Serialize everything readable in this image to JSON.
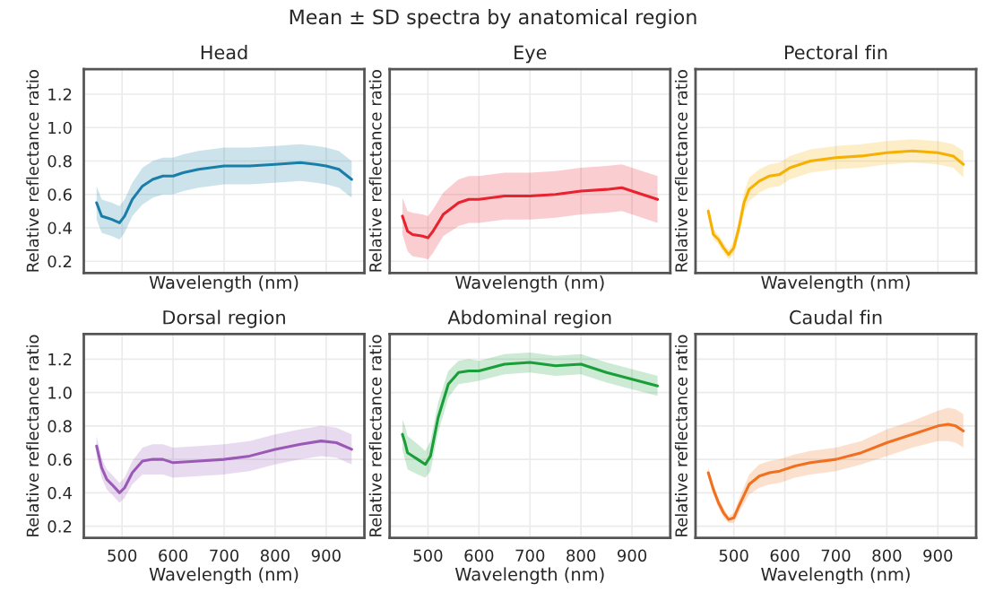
{
  "chart_data": [
    {
      "type": "line",
      "title": "Head",
      "xlabel": "Wavelength (nm)",
      "ylabel": "Relative reflectance ratio",
      "annotations": [
        "Mean ± SD spectra by anatomical region"
      ],
      "xlim": [
        425,
        975
      ],
      "ylim": [
        0.13,
        1.35
      ],
      "xticks": [
        500,
        600,
        700,
        800,
        900
      ],
      "yticks": [
        0.2,
        0.4,
        0.6,
        0.8,
        {
          "value": 1,
          "label": "1.0"
        },
        1.2
      ],
      "grid": true,
      "tick_labels": "y",
      "series": [
        {
          "color": "#1a7fa8",
          "x": [
            450,
            460,
            470,
            480,
            495,
            505,
            520,
            540,
            560,
            580,
            600,
            620,
            650,
            700,
            750,
            800,
            850,
            880,
            900,
            925,
            950
          ],
          "values": [
            0.55,
            0.47,
            0.46,
            0.45,
            0.43,
            0.47,
            0.57,
            0.65,
            0.69,
            0.71,
            0.71,
            0.73,
            0.75,
            0.77,
            0.77,
            0.78,
            0.79,
            0.78,
            0.77,
            0.75,
            0.69
          ],
          "lower": [
            0.45,
            0.37,
            0.36,
            0.35,
            0.33,
            0.37,
            0.47,
            0.54,
            0.58,
            0.6,
            0.6,
            0.62,
            0.64,
            0.66,
            0.66,
            0.67,
            0.68,
            0.67,
            0.66,
            0.64,
            0.58
          ],
          "upper": [
            0.65,
            0.57,
            0.56,
            0.55,
            0.53,
            0.57,
            0.67,
            0.76,
            0.8,
            0.82,
            0.82,
            0.84,
            0.86,
            0.88,
            0.88,
            0.89,
            0.9,
            0.89,
            0.88,
            0.86,
            0.8
          ]
        }
      ]
    },
    {
      "type": "line",
      "title": "Eye",
      "xlabel": "Wavelength (nm)",
      "ylabel": "Relative reflectance ratio",
      "xlim": [
        425,
        975
      ],
      "ylim": [
        0.13,
        1.35
      ],
      "xticks": [
        500,
        600,
        700,
        800,
        900
      ],
      "yticks": [
        0.2,
        0.4,
        0.6,
        0.8,
        1,
        1.2
      ],
      "grid": true,
      "tick_labels": false,
      "series": [
        {
          "color": "#e8222e",
          "x": [
            450,
            460,
            470,
            490,
            500,
            510,
            530,
            560,
            580,
            600,
            650,
            700,
            750,
            800,
            850,
            880,
            900,
            950
          ],
          "values": [
            0.47,
            0.38,
            0.36,
            0.35,
            0.34,
            0.38,
            0.48,
            0.55,
            0.57,
            0.57,
            0.59,
            0.59,
            0.6,
            0.62,
            0.63,
            0.64,
            0.62,
            0.57
          ],
          "lower": [
            0.36,
            0.26,
            0.23,
            0.22,
            0.21,
            0.25,
            0.35,
            0.41,
            0.43,
            0.43,
            0.45,
            0.45,
            0.46,
            0.48,
            0.49,
            0.5,
            0.48,
            0.43
          ],
          "upper": [
            0.58,
            0.5,
            0.49,
            0.48,
            0.47,
            0.51,
            0.61,
            0.69,
            0.71,
            0.71,
            0.73,
            0.73,
            0.74,
            0.76,
            0.77,
            0.78,
            0.76,
            0.71
          ]
        }
      ]
    },
    {
      "type": "line",
      "title": "Pectoral fin",
      "xlabel": "Wavelength (nm)",
      "ylabel": "Relative reflectance ratio",
      "xlim": [
        425,
        975
      ],
      "ylim": [
        0.13,
        1.35
      ],
      "xticks": [
        500,
        600,
        700,
        800,
        900
      ],
      "yticks": [
        0.2,
        0.4,
        0.6,
        0.8,
        1,
        1.2
      ],
      "grid": true,
      "tick_labels": false,
      "series": [
        {
          "color": "#f5b000",
          "x": [
            450,
            460,
            470,
            480,
            490,
            500,
            510,
            520,
            530,
            550,
            570,
            590,
            610,
            650,
            700,
            750,
            800,
            850,
            900,
            930,
            950
          ],
          "values": [
            0.5,
            0.36,
            0.33,
            0.28,
            0.24,
            0.28,
            0.4,
            0.55,
            0.63,
            0.68,
            0.71,
            0.72,
            0.76,
            0.8,
            0.82,
            0.83,
            0.85,
            0.86,
            0.85,
            0.83,
            0.78
          ],
          "lower": [
            0.47,
            0.33,
            0.3,
            0.25,
            0.21,
            0.24,
            0.35,
            0.49,
            0.56,
            0.61,
            0.64,
            0.65,
            0.69,
            0.73,
            0.75,
            0.76,
            0.78,
            0.79,
            0.78,
            0.76,
            0.7
          ],
          "upper": [
            0.53,
            0.39,
            0.36,
            0.31,
            0.27,
            0.32,
            0.45,
            0.61,
            0.7,
            0.75,
            0.78,
            0.79,
            0.83,
            0.87,
            0.89,
            0.9,
            0.92,
            0.93,
            0.92,
            0.9,
            0.86
          ]
        }
      ]
    },
    {
      "type": "line",
      "title": "Dorsal region",
      "xlabel": "Wavelength (nm)",
      "ylabel": "Relative reflectance ratio",
      "xlim": [
        425,
        975
      ],
      "ylim": [
        0.13,
        1.35
      ],
      "xticks": [
        500,
        600,
        700,
        800,
        900
      ],
      "yticks": [
        0.2,
        0.4,
        0.6,
        0.8,
        {
          "value": 1,
          "label": "1.0"
        },
        1.2
      ],
      "grid": true,
      "series": [
        {
          "color": "#9b59b6",
          "x": [
            450,
            460,
            470,
            480,
            495,
            505,
            520,
            540,
            560,
            580,
            600,
            650,
            700,
            750,
            800,
            850,
            890,
            920,
            950
          ],
          "values": [
            0.68,
            0.55,
            0.48,
            0.45,
            0.4,
            0.43,
            0.52,
            0.59,
            0.6,
            0.6,
            0.58,
            0.59,
            0.6,
            0.62,
            0.66,
            0.69,
            0.71,
            0.7,
            0.66
          ],
          "lower": [
            0.62,
            0.49,
            0.42,
            0.39,
            0.34,
            0.37,
            0.45,
            0.51,
            0.51,
            0.51,
            0.49,
            0.5,
            0.51,
            0.53,
            0.57,
            0.6,
            0.62,
            0.61,
            0.57
          ],
          "upper": [
            0.74,
            0.61,
            0.54,
            0.51,
            0.46,
            0.49,
            0.59,
            0.67,
            0.69,
            0.69,
            0.67,
            0.68,
            0.69,
            0.71,
            0.75,
            0.78,
            0.8,
            0.79,
            0.75
          ]
        }
      ]
    },
    {
      "type": "line",
      "title": "Abdominal region",
      "xlabel": "Wavelength (nm)",
      "ylabel": "Relative reflectance ratio",
      "xlim": [
        425,
        975
      ],
      "ylim": [
        0.13,
        1.35
      ],
      "xticks": [
        500,
        600,
        700,
        800,
        900
      ],
      "yticks": [
        0.2,
        0.4,
        0.6,
        0.8,
        1,
        1.2
      ],
      "grid": true,
      "tick_labels": "x",
      "series": [
        {
          "color": "#1a9e3a",
          "x": [
            450,
            455,
            460,
            480,
            495,
            505,
            520,
            540,
            560,
            580,
            600,
            650,
            700,
            750,
            800,
            850,
            900,
            950
          ],
          "values": [
            0.75,
            0.7,
            0.64,
            0.6,
            0.57,
            0.62,
            0.85,
            1.05,
            1.12,
            1.13,
            1.13,
            1.17,
            1.18,
            1.16,
            1.17,
            1.12,
            1.08,
            1.04
          ],
          "lower": [
            0.66,
            0.6,
            0.54,
            0.51,
            0.49,
            0.53,
            0.76,
            0.97,
            1.05,
            1.06,
            1.07,
            1.11,
            1.12,
            1.1,
            1.11,
            1.06,
            1.02,
            0.98
          ],
          "upper": [
            0.84,
            0.8,
            0.74,
            0.69,
            0.65,
            0.71,
            0.94,
            1.13,
            1.19,
            1.2,
            1.19,
            1.23,
            1.24,
            1.22,
            1.23,
            1.18,
            1.14,
            1.1
          ]
        }
      ]
    },
    {
      "type": "line",
      "title": "Caudal fin",
      "xlabel": "Wavelength (nm)",
      "ylabel": "Relative reflectance ratio",
      "xlim": [
        425,
        975
      ],
      "ylim": [
        0.13,
        1.35
      ],
      "xticks": [
        500,
        600,
        700,
        800,
        900
      ],
      "yticks": [
        0.2,
        0.4,
        0.6,
        0.8,
        1,
        1.2
      ],
      "grid": true,
      "tick_labels": "x",
      "series": [
        {
          "color": "#f07020",
          "x": [
            450,
            460,
            470,
            480,
            490,
            500,
            510,
            530,
            550,
            570,
            590,
            620,
            650,
            700,
            750,
            800,
            850,
            900,
            920,
            935,
            950
          ],
          "values": [
            0.52,
            0.42,
            0.34,
            0.28,
            0.24,
            0.25,
            0.32,
            0.45,
            0.5,
            0.52,
            0.53,
            0.56,
            0.58,
            0.6,
            0.64,
            0.7,
            0.75,
            0.8,
            0.81,
            0.8,
            0.77
          ],
          "lower": [
            0.49,
            0.39,
            0.31,
            0.25,
            0.22,
            0.22,
            0.28,
            0.39,
            0.43,
            0.45,
            0.46,
            0.49,
            0.51,
            0.53,
            0.57,
            0.62,
            0.67,
            0.71,
            0.71,
            0.7,
            0.67
          ],
          "upper": [
            0.55,
            0.45,
            0.37,
            0.31,
            0.26,
            0.28,
            0.36,
            0.51,
            0.57,
            0.59,
            0.6,
            0.63,
            0.65,
            0.67,
            0.71,
            0.78,
            0.83,
            0.89,
            0.91,
            0.9,
            0.87
          ]
        }
      ]
    }
  ]
}
